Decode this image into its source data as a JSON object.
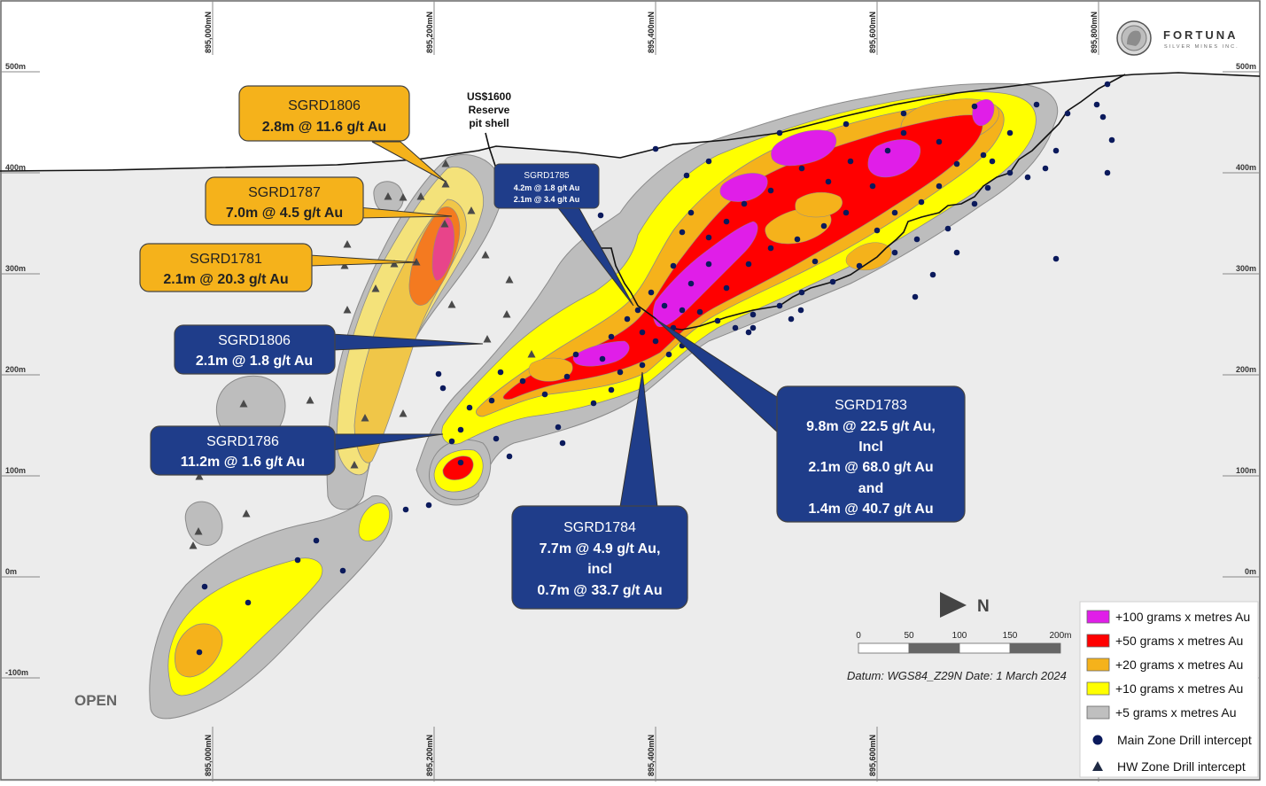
{
  "logo": {
    "name": "FORTUNA",
    "sub": "SILVER MINES INC."
  },
  "elevation_labels": [
    "500m",
    "400m",
    "300m",
    "200m",
    "100m",
    "0m",
    "-100m"
  ],
  "northing_labels": [
    "895,000mN",
    "895,200mN",
    "895,400mN",
    "895,600mN",
    "895,800mN"
  ],
  "pit_shell_label": [
    "US$1600",
    "Reserve",
    "pit shell"
  ],
  "open_label": "OPEN",
  "north_label": "N",
  "scale_bar": {
    "ticks": [
      "0",
      "50",
      "100",
      "150",
      "200m"
    ]
  },
  "datum_text": "Datum: WGS84_Z29N   Date: 1 March 2024",
  "legend": [
    {
      "label": "+100 grams x metres Au",
      "color": "#e01ee8"
    },
    {
      "label": "+50 grams x metres Au",
      "color": "#ff0000"
    },
    {
      "label": "+20 grams x metres Au",
      "color": "#f5b21b"
    },
    {
      "label": "+10 grams x metres Au",
      "color": "#ffff00"
    },
    {
      "label": "+5 grams x metres Au",
      "color": "#bfbfbf"
    },
    {
      "label": "Main Zone Drill intercept",
      "symbol": "circle",
      "color": "#0b1a5c"
    },
    {
      "label": "HW Zone Drill intercept",
      "symbol": "triangle",
      "color": "#1f2a44"
    }
  ],
  "callouts": {
    "sgrd1806_top": {
      "title": "SGRD1806",
      "lines": [
        "2.8m @ 11.6 g/t Au"
      ]
    },
    "sgrd1787": {
      "title": "SGRD1787",
      "lines": [
        "7.0m @ 4.5 g/t Au"
      ]
    },
    "sgrd1781": {
      "title": "SGRD1781",
      "lines": [
        "2.1m @ 20.3 g/t Au"
      ]
    },
    "sgrd1785": {
      "title": "SGRD1785",
      "lines": [
        "4.2m @ 1.8 g/t Au",
        "2.1m @ 3.4 g/t Au"
      ]
    },
    "sgrd1806_mid": {
      "title": "SGRD1806",
      "lines": [
        "2.1m @ 1.8 g/t Au"
      ]
    },
    "sgrd1786": {
      "title": "SGRD1786",
      "lines": [
        "11.2m @ 1.6 g/t Au"
      ]
    },
    "sgrd1784": {
      "title": "SGRD1784",
      "lines": [
        "7.7m @ 4.9 g/t Au,",
        "incl",
        "0.7m @ 33.7 g/t Au"
      ]
    },
    "sgrd1783": {
      "title": "SGRD1783",
      "lines": [
        "9.8m @ 22.5 g/t Au,",
        "Incl",
        "2.1m @ 68.0 g/t Au",
        "and",
        "1.4m @ 40.7 g/t Au"
      ]
    }
  }
}
